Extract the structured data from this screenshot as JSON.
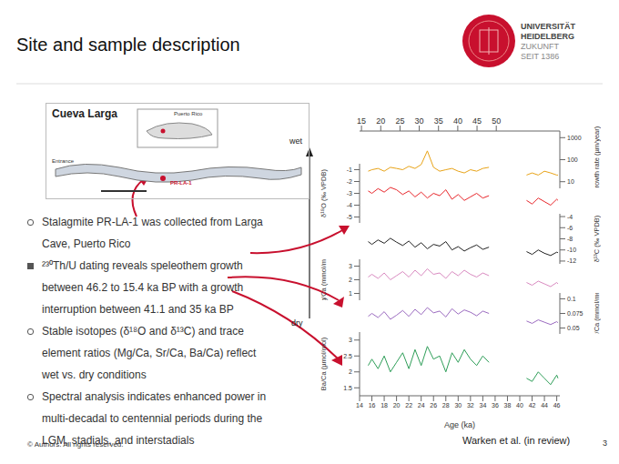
{
  "header": {
    "title": "Site and sample description",
    "logo": [
      "UNIVERSITÄT",
      "HEIDELBERG",
      "ZUKUNFT",
      "SEIT 1386"
    ]
  },
  "map": {
    "title": "Cueva Larga",
    "inset": "Puerto Rico",
    "sample": "PR-LA-1",
    "entrance": "Entrance"
  },
  "bullets": [
    "Stalagmite PR-LA-1 was collected from Larga Cave, Puerto Rico",
    "²³⁰Th/U dating reveals speleothem growth between 46.2 to 15.4 ka BP with a growth interruption between 41.1 and 35 ka BP",
    "Stable isotopes (δ¹⁸O and δ¹³C) and trace element ratios (Mg/Ca, Sr/Ca, Ba/Ca) reflect wet vs. dry conditions",
    "Spectral analysis indicates enhanced power in multi-decadal to centennial periods during the LGM, stadials, and interstadials"
  ],
  "figure": {
    "wet": "wet",
    "dry": "dry",
    "citation": "Warken et al. (in review)"
  },
  "chart_data": {
    "type": "line",
    "xlabel": "Age (ka)",
    "x": [
      15.4,
      16,
      17,
      18,
      19,
      20,
      21,
      22,
      23,
      24,
      25,
      26,
      27,
      28,
      29,
      30,
      31,
      32,
      33,
      34,
      35,
      38,
      41.1,
      42,
      43,
      44,
      45,
      46,
      46.2
    ],
    "xlim": [
      14,
      46.5
    ],
    "xticks": [
      14,
      16,
      18,
      20,
      22,
      24,
      26,
      28,
      30,
      32,
      34,
      36,
      38,
      40,
      42,
      44,
      46
    ],
    "x2lim": [
      14.5,
      66.5
    ],
    "x2ticks": [
      15,
      20,
      25,
      30,
      35,
      40,
      45,
      50
    ],
    "panels": [
      {
        "ylabel": "Growth rate (µm/year)",
        "color": "#e8a317",
        "log": true,
        "ylim": [
          5,
          2000
        ],
        "yticks": [
          10,
          100,
          1000
        ],
        "values": [
          30,
          35,
          40,
          30,
          45,
          40,
          35,
          50,
          40,
          60,
          250,
          45,
          30,
          35,
          40,
          30,
          25,
          35,
          30,
          40,
          45,
          null,
          20,
          25,
          20,
          30,
          25,
          20,
          20
        ]
      },
      {
        "ylabel": "δ¹⁸O (‰ VPDB)",
        "color": "#e8262b",
        "ylim": [
          -5.5,
          -0.5
        ],
        "yticks": [
          -5,
          -4,
          -3,
          -2,
          -1
        ],
        "values": [
          -2.8,
          -3.0,
          -2.6,
          -2.9,
          -2.5,
          -2.7,
          -3.1,
          -2.8,
          -3.3,
          -2.9,
          -3.4,
          -3.0,
          -3.2,
          -2.7,
          -3.5,
          -3.1,
          -3.6,
          -3.3,
          -3.0,
          -3.4,
          -3.2,
          null,
          -3.6,
          -3.9,
          -3.4,
          -3.7,
          -4.0,
          -3.5,
          -3.6
        ]
      },
      {
        "ylabel": "δ¹³C (‰ VPDB)",
        "color": "#222222",
        "ylim": [
          -12.5,
          -3.5
        ],
        "yticks": [
          -12,
          -10,
          -8,
          -6,
          -4
        ],
        "values": [
          -8.5,
          -9.0,
          -8.2,
          -8.8,
          -7.9,
          -8.6,
          -9.2,
          -8.4,
          -9.5,
          -8.7,
          -9.8,
          -9.0,
          -9.3,
          -8.5,
          -10.0,
          -9.4,
          -10.2,
          -9.6,
          -9.1,
          -9.9,
          -9.5,
          null,
          -10.3,
          -10.8,
          -10.0,
          -10.6,
          -11.0,
          -10.4,
          -10.5
        ]
      },
      {
        "ylabel": "Mg/Ca (mmol/mol)",
        "color": "#d98ac0",
        "ylim": [
          0.5,
          3.5
        ],
        "yticks": [
          1,
          2,
          3
        ],
        "values": [
          2.2,
          2.4,
          2.1,
          2.5,
          2.0,
          2.3,
          2.6,
          2.2,
          2.7,
          2.3,
          2.8,
          2.4,
          2.5,
          2.1,
          2.6,
          2.3,
          2.7,
          2.4,
          2.2,
          2.5,
          2.3,
          null,
          1.8,
          1.6,
          1.9,
          1.7,
          1.5,
          1.8,
          1.7
        ]
      },
      {
        "ylabel": "Sr/Ca (mmol/mol)",
        "color": "#9b6bc0",
        "ylim": [
          0.04,
          0.11
        ],
        "yticks": [
          0.05,
          0.075,
          0.1
        ],
        "values": [
          0.07,
          0.075,
          0.068,
          0.078,
          0.065,
          0.072,
          0.08,
          0.07,
          0.082,
          0.073,
          0.085,
          0.076,
          0.079,
          0.069,
          0.083,
          0.074,
          0.081,
          0.077,
          0.071,
          0.079,
          0.075,
          null,
          0.062,
          0.058,
          0.064,
          0.06,
          0.056,
          0.061,
          0.059
        ]
      },
      {
        "ylabel": "Ba/Ca (µmol/mol)",
        "color": "#2e9e58",
        "ylim": [
          1.25,
          3.25
        ],
        "yticks": [
          1.5,
          2,
          2.5,
          3
        ],
        "values": [
          2.2,
          2.4,
          2.1,
          2.5,
          2.0,
          2.3,
          2.6,
          2.1,
          2.7,
          2.2,
          2.8,
          2.4,
          2.5,
          2.0,
          2.6,
          2.3,
          2.7,
          2.4,
          2.2,
          2.5,
          2.3,
          null,
          1.8,
          1.7,
          2.0,
          1.8,
          1.6,
          1.9,
          1.8
        ]
      }
    ]
  },
  "footer": {
    "copyright": "© Authors. All rights reserved.",
    "page": "3"
  }
}
